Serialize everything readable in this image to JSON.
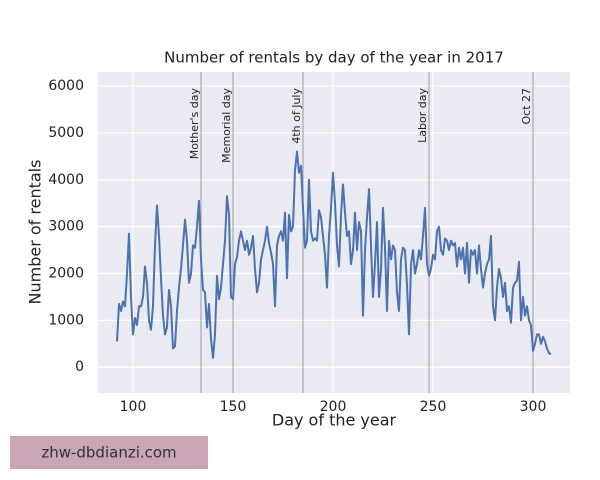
{
  "chart_data": {
    "type": "line",
    "title": "Number of rentals by day of the year in 2017",
    "x_label": "Day of the year",
    "y_label": "Number of rentals",
    "x": [
      92,
      93,
      94,
      95,
      96,
      97,
      98,
      99,
      100,
      101,
      102,
      103,
      104,
      105,
      106,
      107,
      108,
      109,
      110,
      111,
      112,
      113,
      114,
      115,
      116,
      117,
      118,
      119,
      120,
      121,
      122,
      123,
      124,
      125,
      126,
      127,
      128,
      129,
      130,
      131,
      132,
      133,
      134,
      135,
      136,
      137,
      138,
      139,
      140,
      141,
      142,
      143,
      144,
      145,
      146,
      147,
      148,
      149,
      150,
      151,
      152,
      153,
      154,
      155,
      156,
      157,
      158,
      159,
      160,
      161,
      162,
      163,
      164,
      165,
      166,
      167,
      168,
      169,
      170,
      171,
      172,
      173,
      174,
      175,
      176,
      177,
      178,
      179,
      180,
      181,
      182,
      183,
      184,
      185,
      186,
      187,
      188,
      189,
      190,
      191,
      192,
      193,
      194,
      195,
      196,
      197,
      198,
      199,
      200,
      201,
      202,
      203,
      204,
      205,
      206,
      207,
      208,
      209,
      210,
      211,
      212,
      213,
      214,
      215,
      216,
      217,
      218,
      219,
      220,
      221,
      222,
      223,
      224,
      225,
      226,
      227,
      228,
      229,
      230,
      231,
      232,
      233,
      234,
      235,
      236,
      237,
      238,
      239,
      240,
      241,
      242,
      243,
      244,
      245,
      246,
      247,
      248,
      249,
      250,
      251,
      252,
      253,
      254,
      255,
      256,
      257,
      258,
      259,
      260,
      261,
      262,
      263,
      264,
      265,
      266,
      267,
      268,
      269,
      270,
      271,
      272,
      273,
      274,
      275,
      276,
      277,
      278,
      279,
      280,
      281,
      282,
      283,
      284,
      285,
      286,
      287,
      288,
      289,
      290,
      291,
      292,
      293,
      294,
      295,
      296,
      297,
      298,
      299,
      300,
      301,
      302,
      303,
      304,
      305,
      306,
      307,
      308,
      309
    ],
    "series": [
      {
        "name": "rentals",
        "color": "#4c72b0",
        "values": [
          550,
          1350,
          1200,
          1400,
          1300,
          2000,
          2850,
          1500,
          700,
          1050,
          900,
          1300,
          1300,
          1500,
          2150,
          1800,
          1000,
          800,
          1300,
          2600,
          3450,
          2800,
          1900,
          1100,
          700,
          850,
          1650,
          1300,
          400,
          450,
          1200,
          1700,
          2100,
          2600,
          3150,
          2700,
          1800,
          2000,
          2600,
          2550,
          3000,
          3550,
          2300,
          1650,
          1600,
          850,
          1350,
          600,
          200,
          700,
          1950,
          1450,
          1700,
          2200,
          2700,
          3650,
          3250,
          1500,
          1450,
          2200,
          2350,
          2700,
          2900,
          2700,
          2500,
          2700,
          2400,
          2550,
          2800,
          2100,
          1600,
          1800,
          2300,
          2500,
          2700,
          3000,
          2650,
          2450,
          2200,
          1300,
          2600,
          2800,
          2900,
          2700,
          3300,
          1900,
          3250,
          2900,
          3000,
          4200,
          4600,
          4150,
          4300,
          3400,
          2550,
          2700,
          4000,
          2900,
          2700,
          2750,
          2700,
          3350,
          3200,
          2800,
          2400,
          1700,
          2800,
          3400,
          4150,
          3500,
          2600,
          2150,
          3250,
          3900,
          3300,
          2800,
          2900,
          2200,
          2500,
          3300,
          2500,
          3100,
          2900,
          1100,
          2500,
          3200,
          3800,
          2600,
          1500,
          2200,
          3100,
          1500,
          2100,
          3400,
          2550,
          1200,
          2700,
          2300,
          2600,
          2500,
          1600,
          1200,
          2300,
          2550,
          2500,
          1750,
          700,
          2200,
          2500,
          2000,
          2200,
          2500,
          2300,
          2800,
          3400,
          2200,
          1950,
          2100,
          2400,
          2300,
          2900,
          3000,
          2500,
          2400,
          2750,
          2700,
          2500,
          2700,
          2600,
          2650,
          2150,
          2550,
          2300,
          2550,
          2000,
          2650,
          1800,
          2500,
          2400,
          2500,
          2000,
          2600,
          2100,
          1700,
          2000,
          2200,
          2300,
          2800,
          1300,
          1000,
          1700,
          2100,
          1900,
          1500,
          1800,
          1200,
          1300,
          950,
          1700,
          1800,
          1850,
          2250,
          1000,
          1500,
          1100,
          1300,
          1000,
          900,
          350,
          500,
          700,
          700,
          500,
          650,
          550,
          400,
          300,
          280
        ]
      }
    ],
    "annotations": [
      {
        "x": 134,
        "label": "Mother's day"
      },
      {
        "x": 150,
        "label": "Memorial day"
      },
      {
        "x": 185,
        "label": "4th of July"
      },
      {
        "x": 248,
        "label": "Labor day"
      },
      {
        "x": 300,
        "label": "Oct 27"
      }
    ],
    "xlim": [
      82.5,
      318.5
    ],
    "ylim": [
      -550,
      6300
    ],
    "xticks": [
      100,
      150,
      200,
      250,
      300
    ],
    "yticks": [
      0,
      1000,
      2000,
      3000,
      4000,
      5000,
      6000
    ],
    "grid": true,
    "background": "#eaeaf2"
  },
  "watermark": "zhw-dbdianzi.com"
}
